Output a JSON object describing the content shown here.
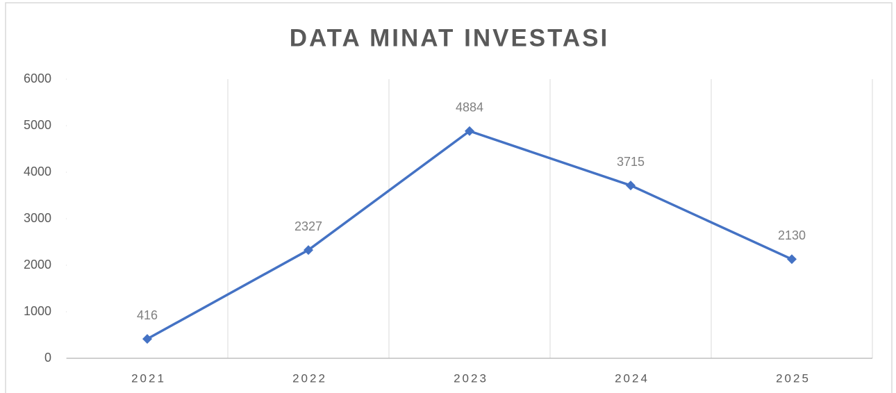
{
  "chart_data": {
    "type": "line",
    "title": "DATA MINAT INVESTASI",
    "categories": [
      "2021",
      "2022",
      "2023",
      "2024",
      "2025"
    ],
    "series": [
      {
        "name": "Data Minat Investasi",
        "color": "#4472c4",
        "values": [
          416,
          2327,
          4884,
          3715,
          2130
        ]
      }
    ],
    "ylim": [
      0,
      6000
    ],
    "yticks": [
      0,
      1000,
      2000,
      3000,
      4000,
      5000,
      6000
    ],
    "grid": "x",
    "legend": false,
    "data_labels": true
  }
}
